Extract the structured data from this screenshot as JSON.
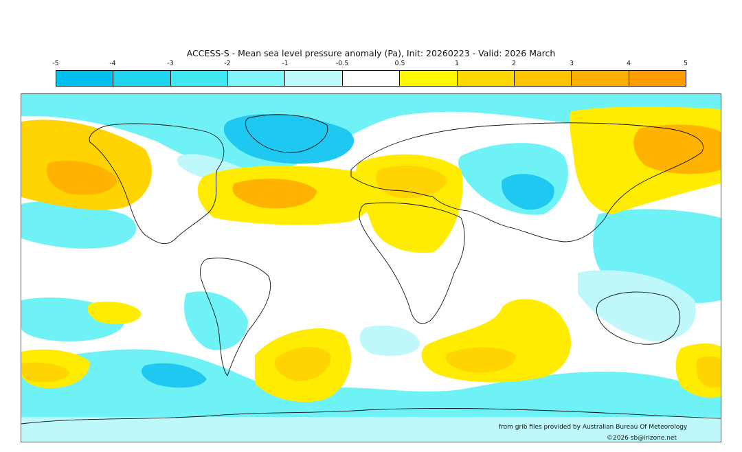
{
  "title": "ACCESS-S - Mean sea level pressure anomaly (Pa), Init: 20260223 - Valid: 2026 March",
  "legend": {
    "ticks": [
      "-5",
      "-4",
      "-3",
      "-2",
      "-1",
      "-0.5",
      "0.5",
      "1",
      "2",
      "3",
      "4",
      "5"
    ],
    "colors": [
      "#00bfef",
      "#20d4ef",
      "#40e8f2",
      "#80f4f6",
      "#c0fbfb",
      "#ffffff",
      "#fff700",
      "#ffd800",
      "#ffc400",
      "#ffb000",
      "#ff9c00"
    ]
  },
  "colors": {
    "land_outline": "#111111",
    "border": "#aaaaaa",
    "neg_strong": "#1ec8f0",
    "neg_mid": "#6ef2f6",
    "neg_weak": "#bff8fa",
    "pos_weak": "#ffec00",
    "pos_mid": "#ffd400",
    "pos_strong": "#ffb300"
  },
  "credits": {
    "source": "from grib files provided by Australian Bureau Of Meteorology",
    "copyright": "©2026 sb@irizone.net"
  }
}
